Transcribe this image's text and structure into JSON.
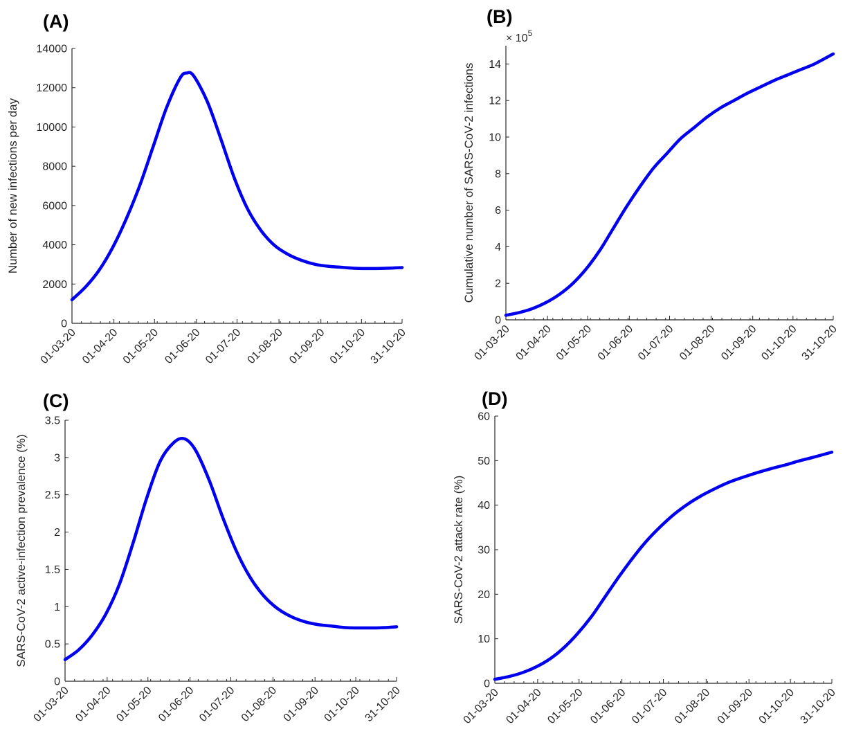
{
  "chart_data": [
    {
      "panel": "(A)",
      "type": "line",
      "ylabel": "Number of new infections per day",
      "x_tick_labels": [
        "01-03-20",
        "01-04-20",
        "01-05-20",
        "01-06-20",
        "01-07-20",
        "01-08-20",
        "01-09-20",
        "01-10-20",
        "31-10-20"
      ],
      "x_tick_dates": [
        "2020-03-01",
        "2020-04-01",
        "2020-05-01",
        "2020-06-01",
        "2020-07-01",
        "2020-08-01",
        "2020-09-01",
        "2020-10-01",
        "2020-10-31"
      ],
      "xlim": [
        "2020-03-01",
        "2020-10-31"
      ],
      "ylim": [
        0,
        14000
      ],
      "y_ticks": [
        0,
        2000,
        4000,
        6000,
        8000,
        10000,
        12000,
        14000
      ],
      "y_tick_labels": [
        "0",
        "2000",
        "4000",
        "6000",
        "8000",
        "10000",
        "12000",
        "14000"
      ],
      "exponent": "",
      "grid": false,
      "color": "#0000ee",
      "series": [
        {
          "x": [
            "2020-03-01",
            "2020-03-11",
            "2020-03-21",
            "2020-03-31",
            "2020-04-10",
            "2020-04-20",
            "2020-04-30",
            "2020-05-10",
            "2020-05-20",
            "2020-05-25",
            "2020-05-30",
            "2020-06-09",
            "2020-06-19",
            "2020-06-29",
            "2020-07-09",
            "2020-07-19",
            "2020-07-29",
            "2020-08-08",
            "2020-08-18",
            "2020-08-28",
            "2020-09-07",
            "2020-09-17",
            "2020-09-27",
            "2020-10-07",
            "2020-10-17",
            "2020-10-31"
          ],
          "y": [
            1200,
            1850,
            2700,
            3850,
            5300,
            7000,
            9000,
            11000,
            12500,
            12750,
            12600,
            11300,
            9400,
            7400,
            5800,
            4700,
            3950,
            3500,
            3200,
            3000,
            2900,
            2850,
            2800,
            2790,
            2800,
            2840
          ]
        }
      ]
    },
    {
      "panel": "(B)",
      "type": "line",
      "ylabel": "Cumulative number of SARS-CoV-2 infections",
      "x_tick_labels": [
        "01-03-20",
        "01-04-20",
        "01-05-20",
        "01-06-20",
        "01-07-20",
        "01-08-20",
        "01-09-20",
        "01-10-20",
        "31-10-20"
      ],
      "x_tick_dates": [
        "2020-03-01",
        "2020-04-01",
        "2020-05-01",
        "2020-06-01",
        "2020-07-01",
        "2020-08-01",
        "2020-09-01",
        "2020-10-01",
        "2020-10-31"
      ],
      "xlim": [
        "2020-03-01",
        "2020-10-31"
      ],
      "ylim": [
        0,
        15
      ],
      "y_ticks": [
        0,
        2,
        4,
        6,
        8,
        10,
        12,
        14
      ],
      "y_tick_labels": [
        "0",
        "2",
        "4",
        "6",
        "8",
        "10",
        "12",
        "14"
      ],
      "exponent": "× 10",
      "exponent_power": "5",
      "grid": false,
      "color": "#0000ee",
      "series": [
        {
          "x": [
            "2020-03-01",
            "2020-03-11",
            "2020-03-21",
            "2020-03-31",
            "2020-04-10",
            "2020-04-20",
            "2020-04-30",
            "2020-05-10",
            "2020-05-20",
            "2020-05-30",
            "2020-06-09",
            "2020-06-19",
            "2020-06-29",
            "2020-07-09",
            "2020-07-19",
            "2020-07-29",
            "2020-08-08",
            "2020-08-18",
            "2020-08-28",
            "2020-09-07",
            "2020-09-17",
            "2020-09-27",
            "2020-10-07",
            "2020-10-17",
            "2020-10-31"
          ],
          "y": [
            0.25,
            0.4,
            0.62,
            0.95,
            1.4,
            2.0,
            2.8,
            3.8,
            5.0,
            6.2,
            7.3,
            8.3,
            9.1,
            9.9,
            10.5,
            11.1,
            11.6,
            12.0,
            12.4,
            12.75,
            13.1,
            13.4,
            13.7,
            14.0,
            14.55
          ]
        }
      ]
    },
    {
      "panel": "(C)",
      "type": "line",
      "ylabel": "SARS-CoV-2 active-infection prevalence (%)",
      "x_tick_labels": [
        "01-03-20",
        "01-04-20",
        "01-05-20",
        "01-06-20",
        "01-07-20",
        "01-08-20",
        "01-09-20",
        "01-10-20",
        "31-10-20"
      ],
      "x_tick_dates": [
        "2020-03-01",
        "2020-04-01",
        "2020-05-01",
        "2020-06-01",
        "2020-07-01",
        "2020-08-01",
        "2020-09-01",
        "2020-10-01",
        "2020-10-31"
      ],
      "xlim": [
        "2020-03-01",
        "2020-10-31"
      ],
      "ylim": [
        0,
        3.5
      ],
      "y_ticks": [
        0,
        0.5,
        1,
        1.5,
        2,
        2.5,
        3,
        3.5
      ],
      "y_tick_labels": [
        "0",
        "0.5",
        "1",
        "1.5",
        "2",
        "2.5",
        "3",
        "3.5"
      ],
      "exponent": "",
      "grid": false,
      "color": "#0000ee",
      "series": [
        {
          "x": [
            "2020-03-01",
            "2020-03-11",
            "2020-03-21",
            "2020-03-31",
            "2020-04-10",
            "2020-04-20",
            "2020-04-30",
            "2020-05-10",
            "2020-05-20",
            "2020-05-28",
            "2020-06-05",
            "2020-06-15",
            "2020-06-25",
            "2020-07-05",
            "2020-07-15",
            "2020-07-25",
            "2020-08-04",
            "2020-08-14",
            "2020-08-24",
            "2020-09-03",
            "2020-09-13",
            "2020-09-23",
            "2020-10-03",
            "2020-10-13",
            "2020-10-23",
            "2020-10-31"
          ],
          "y": [
            0.29,
            0.42,
            0.62,
            0.9,
            1.3,
            1.85,
            2.45,
            2.95,
            3.2,
            3.25,
            3.1,
            2.7,
            2.2,
            1.75,
            1.4,
            1.15,
            0.98,
            0.87,
            0.8,
            0.76,
            0.74,
            0.72,
            0.715,
            0.715,
            0.72,
            0.73
          ]
        }
      ]
    },
    {
      "panel": "(D)",
      "type": "line",
      "ylabel": "SARS-CoV-2 attack rate (%)",
      "x_tick_labels": [
        "01-03-20",
        "01-04-20",
        "01-05-20",
        "01-06-20",
        "01-07-20",
        "01-08-20",
        "01-09-20",
        "01-10-20",
        "31-10-20"
      ],
      "x_tick_dates": [
        "2020-03-01",
        "2020-04-01",
        "2020-05-01",
        "2020-06-01",
        "2020-07-01",
        "2020-08-01",
        "2020-09-01",
        "2020-10-01",
        "2020-10-31"
      ],
      "xlim": [
        "2020-03-01",
        "2020-10-31"
      ],
      "ylim": [
        0,
        60
      ],
      "y_ticks": [
        0,
        10,
        20,
        30,
        40,
        50,
        60
      ],
      "y_tick_labels": [
        "0",
        "10",
        "20",
        "30",
        "40",
        "50",
        "60"
      ],
      "exponent": "",
      "grid": false,
      "color": "#0000ee",
      "series": [
        {
          "x": [
            "2020-03-01",
            "2020-03-11",
            "2020-03-21",
            "2020-03-31",
            "2020-04-10",
            "2020-04-20",
            "2020-04-30",
            "2020-05-10",
            "2020-05-20",
            "2020-05-30",
            "2020-06-09",
            "2020-06-19",
            "2020-06-29",
            "2020-07-09",
            "2020-07-19",
            "2020-07-29",
            "2020-08-08",
            "2020-08-18",
            "2020-08-28",
            "2020-09-07",
            "2020-09-17",
            "2020-09-27",
            "2020-10-07",
            "2020-10-17",
            "2020-10-31"
          ],
          "y": [
            0.9,
            1.5,
            2.4,
            3.7,
            5.5,
            8.0,
            11.2,
            15.0,
            19.5,
            24.0,
            28.2,
            32.0,
            35.2,
            38.0,
            40.3,
            42.2,
            43.8,
            45.2,
            46.3,
            47.3,
            48.2,
            49.0,
            49.9,
            50.7,
            51.9
          ]
        }
      ]
    }
  ]
}
